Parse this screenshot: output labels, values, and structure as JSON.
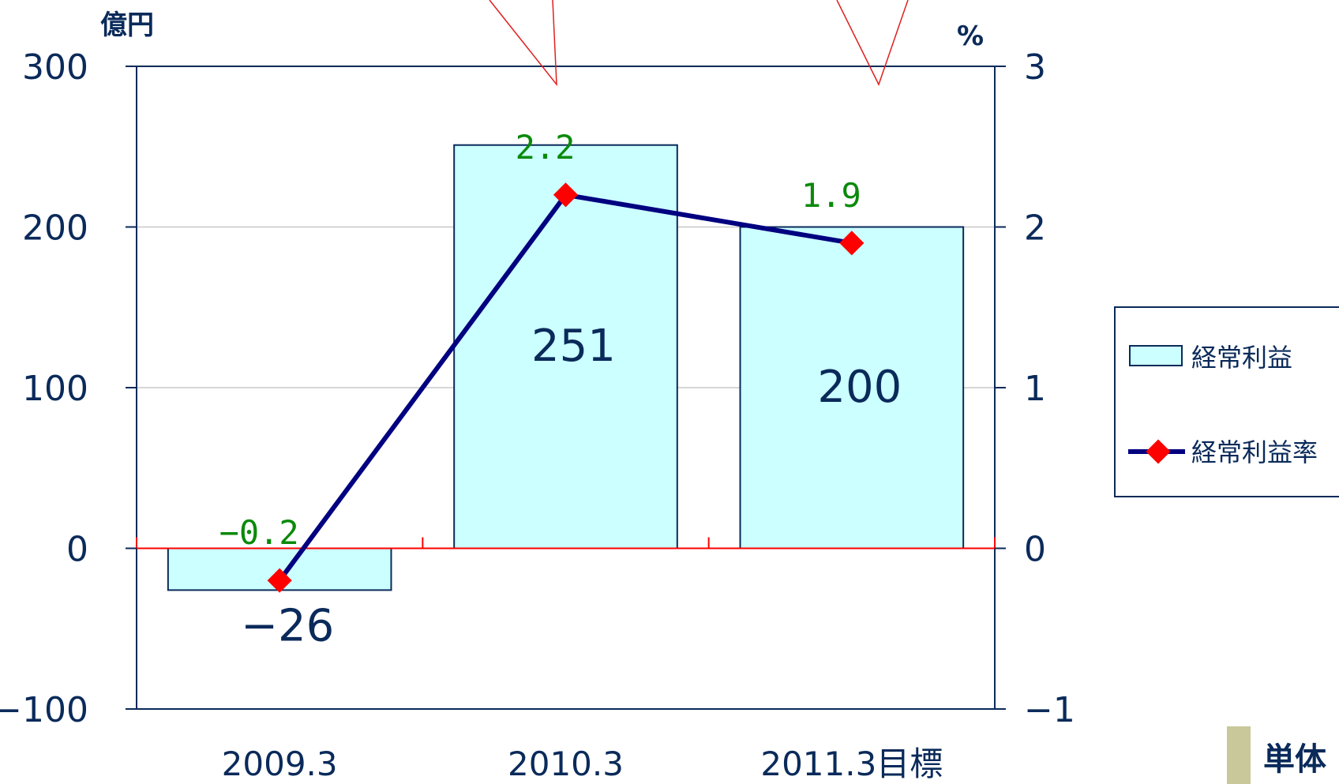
{
  "chart_data": {
    "type": "bar",
    "categories": [
      "2009.3",
      "2010.3",
      "2011.3目標"
    ],
    "series": [
      {
        "name": "経常利益",
        "type": "bar",
        "axis": "left",
        "values": [
          -26,
          251,
          200
        ],
        "labels": [
          "−26",
          "251",
          "200"
        ]
      },
      {
        "name": "経常利益率",
        "type": "line",
        "axis": "right",
        "values": [
          -0.2,
          2.2,
          1.9
        ],
        "labels": [
          "−0.2",
          "2.2",
          "1.9"
        ]
      }
    ],
    "left_axis": {
      "unit": "億円",
      "ylim": [
        -100,
        300
      ],
      "ticks": [
        "300",
        "200",
        "100",
        "0",
        "−100"
      ]
    },
    "right_axis": {
      "unit": "%",
      "ylim": [
        -1,
        3
      ],
      "ticks": [
        "3",
        "2",
        "1",
        "0",
        "−1"
      ]
    },
    "grid": true,
    "legend_position": "right",
    "colors": {
      "bar_fill": "#ccffff",
      "bar_stroke": "#0a2a5a",
      "line": "#000080",
      "marker": "#ff0000",
      "zero_line": "#ff0000",
      "rate_label": "#0a8a0a"
    }
  },
  "badge_text": "単体"
}
